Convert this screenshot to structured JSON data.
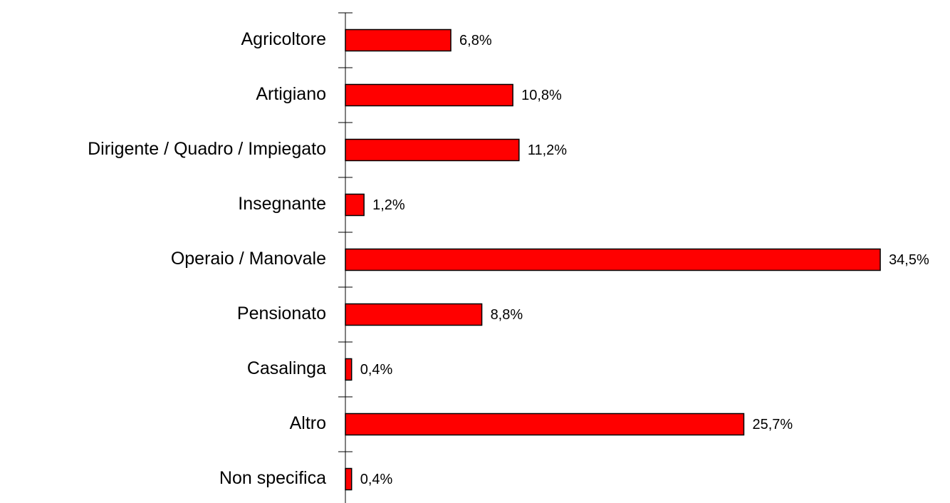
{
  "chart_data": {
    "type": "barh",
    "categories": [
      "Agricoltore",
      "Artigiano",
      "Dirigente / Quadro / Impiegato",
      "Insegnante",
      "Operaio / Manovale",
      "Pensionato",
      "Casalinga",
      "Altro",
      "Non specifica"
    ],
    "values": [
      6.8,
      10.8,
      11.2,
      1.2,
      34.5,
      8.8,
      0.4,
      25.7,
      0.4
    ],
    "value_labels": [
      "6,8%",
      "10,8%",
      "11,2%",
      "1,2%",
      "34,5%",
      "8,8%",
      "0,4%",
      "25,7%",
      "0,4%"
    ],
    "color": "#ff0000"
  }
}
